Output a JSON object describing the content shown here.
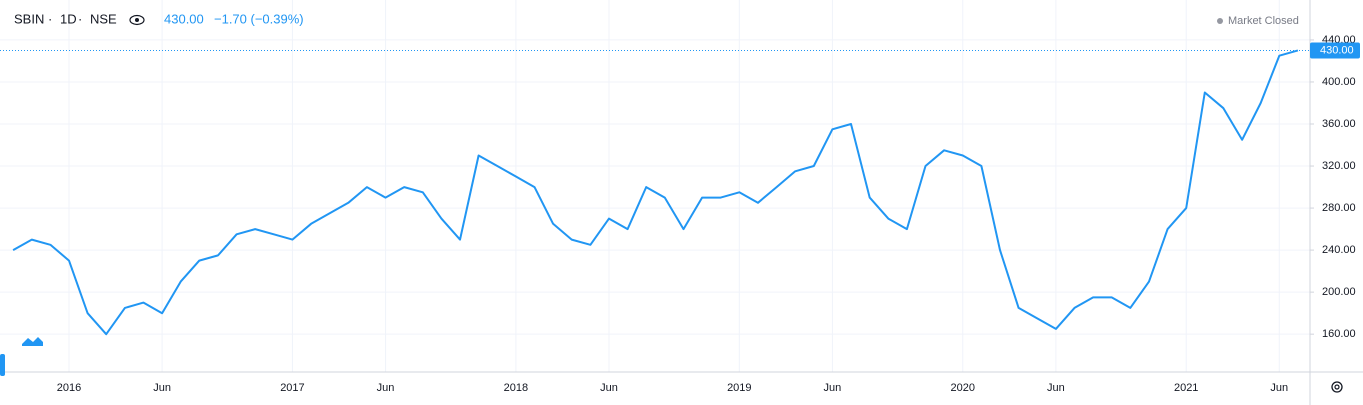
{
  "header": {
    "symbol": "SBIN",
    "interval": "1D",
    "exchange": "NSE",
    "quote": "430.00",
    "change": "−1.70 (−0.39%)",
    "status": "Market Closed"
  },
  "chart_data": {
    "type": "line",
    "x": [
      "2015-10",
      "2015-11",
      "2015-12",
      "2016-01",
      "2016-02",
      "2016-03",
      "2016-04",
      "2016-05",
      "2016-06",
      "2016-07",
      "2016-08",
      "2016-09",
      "2016-10",
      "2016-11",
      "2016-12",
      "2017-01",
      "2017-02",
      "2017-03",
      "2017-04",
      "2017-05",
      "2017-06",
      "2017-07",
      "2017-08",
      "2017-09",
      "2017-10",
      "2017-11",
      "2017-12",
      "2018-01",
      "2018-02",
      "2018-03",
      "2018-04",
      "2018-05",
      "2018-06",
      "2018-07",
      "2018-08",
      "2018-09",
      "2018-10",
      "2018-11",
      "2018-12",
      "2019-01",
      "2019-02",
      "2019-03",
      "2019-04",
      "2019-05",
      "2019-06",
      "2019-07",
      "2019-08",
      "2019-09",
      "2019-10",
      "2019-11",
      "2019-12",
      "2020-01",
      "2020-02",
      "2020-03",
      "2020-04",
      "2020-05",
      "2020-06",
      "2020-07",
      "2020-08",
      "2020-09",
      "2020-10",
      "2020-11",
      "2020-12",
      "2021-01",
      "2021-02",
      "2021-03",
      "2021-04",
      "2021-05",
      "2021-06",
      "2021-07"
    ],
    "series": [
      {
        "name": "SBIN",
        "color": "#2196f3",
        "values": [
          240,
          250,
          245,
          230,
          180,
          160,
          185,
          190,
          180,
          210,
          230,
          235,
          255,
          260,
          255,
          250,
          265,
          275,
          285,
          300,
          290,
          300,
          295,
          270,
          250,
          330,
          320,
          310,
          300,
          265,
          250,
          245,
          270,
          260,
          300,
          290,
          260,
          290,
          290,
          295,
          285,
          300,
          315,
          320,
          355,
          360,
          290,
          270,
          260,
          320,
          335,
          330,
          320,
          240,
          185,
          175,
          165,
          185,
          195,
          195,
          185,
          210,
          260,
          280,
          390,
          375,
          345,
          380,
          425,
          430
        ]
      }
    ],
    "last_price": {
      "value": 430,
      "label": "430.00"
    },
    "ylim": [
      124,
      478
    ],
    "yticks": [
      {
        "value": 160,
        "label": "160.00"
      },
      {
        "value": 200,
        "label": "200.00"
      },
      {
        "value": 240,
        "label": "240.00"
      },
      {
        "value": 280,
        "label": "280.00"
      },
      {
        "value": 320,
        "label": "320.00"
      },
      {
        "value": 360,
        "label": "360.00"
      },
      {
        "value": 400,
        "label": "400.00"
      },
      {
        "value": 440,
        "label": "440.00"
      }
    ],
    "xticks": [
      {
        "value": "2016-01",
        "label": "2016"
      },
      {
        "value": "2016-06",
        "label": "Jun"
      },
      {
        "value": "2017-01",
        "label": "2017"
      },
      {
        "value": "2017-06",
        "label": "Jun"
      },
      {
        "value": "2018-01",
        "label": "2018"
      },
      {
        "value": "2018-06",
        "label": "Jun"
      },
      {
        "value": "2019-01",
        "label": "2019"
      },
      {
        "value": "2019-06",
        "label": "Jun"
      },
      {
        "value": "2020-01",
        "label": "2020"
      },
      {
        "value": "2020-06",
        "label": "Jun"
      },
      {
        "value": "2021-01",
        "label": "2021"
      },
      {
        "value": "2021-06",
        "label": "Jun"
      }
    ],
    "grid": true
  }
}
